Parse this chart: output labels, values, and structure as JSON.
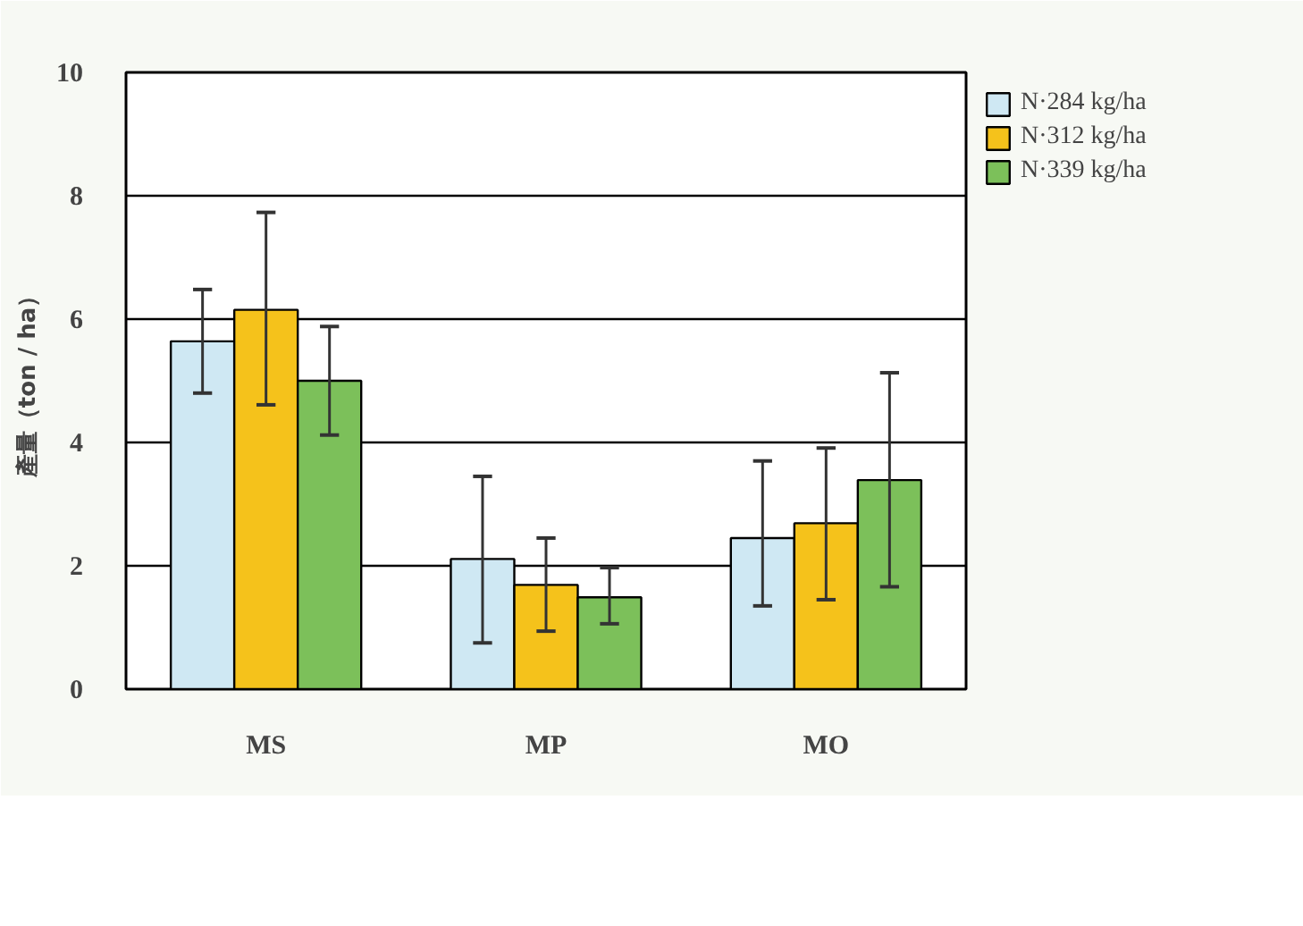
{
  "chart_data": {
    "type": "bar",
    "ylabel": "產量（ton / ha）",
    "categories": [
      "MS",
      "MP",
      "MO"
    ],
    "ylim": [
      0,
      10
    ],
    "yticks": [
      0,
      2,
      4,
      6,
      8,
      10
    ],
    "grid": "y",
    "legend": "top right",
    "series": [
      {
        "name": "N·284 kg/ha",
        "color": "#cfe8f3",
        "values": [
          5.64,
          2.11,
          2.45
        ],
        "errors": [
          [
            4.8,
            6.48
          ],
          [
            0.75,
            3.45
          ],
          [
            1.35,
            3.7
          ]
        ]
      },
      {
        "name": "N·312 kg/ha",
        "color": "#f5c21b",
        "values": [
          6.15,
          1.69,
          2.69
        ],
        "errors": [
          [
            4.61,
            7.73
          ],
          [
            0.94,
            2.45
          ],
          [
            1.45,
            3.91
          ]
        ]
      },
      {
        "name": "N·339 kg/ha",
        "color": "#7cc05a",
        "values": [
          5.0,
          1.49,
          3.39
        ],
        "errors": [
          [
            4.12,
            5.88
          ],
          [
            1.06,
            1.97
          ],
          [
            1.66,
            5.13
          ]
        ]
      }
    ]
  }
}
